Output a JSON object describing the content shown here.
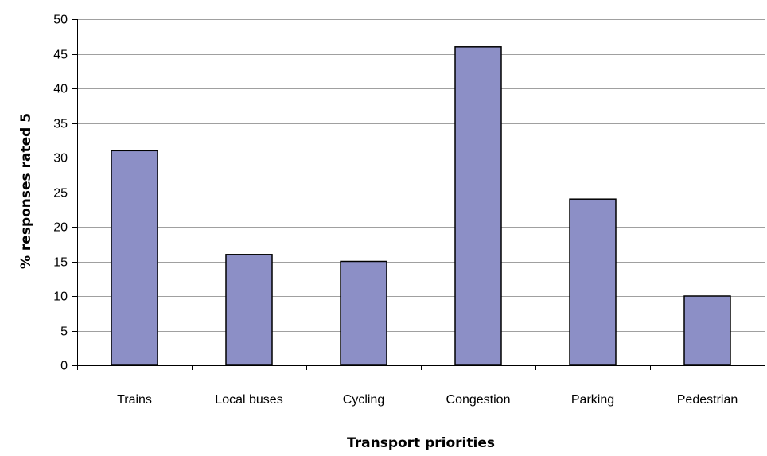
{
  "chart_data": {
    "type": "bar",
    "title": "",
    "xlabel": "Transport priorities",
    "ylabel": "% responses rated 5",
    "categories": [
      "Trains",
      "Local buses",
      "Cycling",
      "Congestion",
      "Parking",
      "Pedestrian"
    ],
    "values": [
      31,
      16,
      15,
      46,
      24,
      10
    ],
    "ylim": [
      0,
      50
    ],
    "yticks": [
      0,
      5,
      10,
      15,
      20,
      25,
      30,
      35,
      40,
      45,
      50
    ],
    "grid": "horizontal",
    "legend": "none",
    "colors": {
      "bar_fill": "#8c8fc6",
      "bar_stroke": "#000000",
      "grid": "#a0a0a0",
      "axis": "#000000"
    }
  }
}
